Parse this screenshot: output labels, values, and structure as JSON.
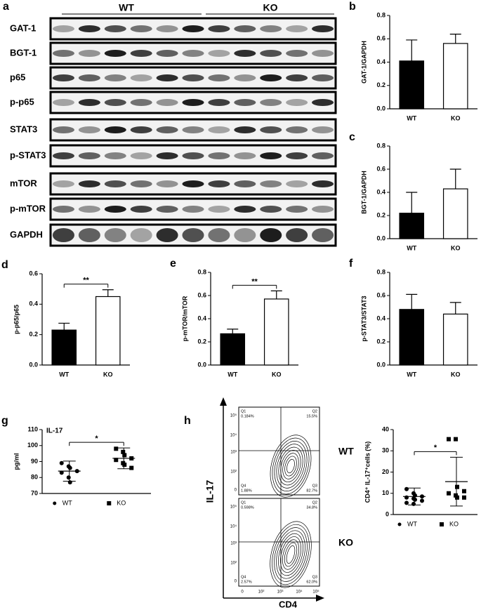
{
  "blot": {
    "panel": "a",
    "groups": [
      "WT",
      "KO"
    ],
    "proteins": [
      "GAT-1",
      "BGT-1",
      "p65",
      "p-p65",
      "STAT3",
      "p-STAT3",
      "mTOR",
      "p-mTOR",
      "GAPDH"
    ]
  },
  "chart_data": [
    {
      "panel": "b",
      "type": "bar",
      "ylabel": "GAT-1/GAPDH",
      "categories": [
        "WT",
        "KO"
      ],
      "values": [
        0.41,
        0.56
      ],
      "errors": [
        0.18,
        0.08
      ],
      "colors": [
        "#000000",
        "#ffffff"
      ],
      "ylim": [
        0,
        0.8
      ],
      "yticks": [
        {
          "value": 0,
          "label": "0.0"
        },
        0.2,
        0.4,
        0.6,
        0.8
      ]
    },
    {
      "panel": "c",
      "type": "bar",
      "ylabel": "BGT-1/GAPDH",
      "categories": [
        "WT",
        "KO"
      ],
      "values": [
        0.22,
        0.43
      ],
      "errors": [
        0.18,
        0.17
      ],
      "colors": [
        "#000000",
        "#ffffff"
      ],
      "ylim": [
        0,
        0.8
      ],
      "yticks": [
        {
          "value": 0,
          "label": "0.0"
        },
        0.2,
        0.4,
        0.6,
        0.8
      ]
    },
    {
      "panel": "d",
      "type": "bar",
      "ylabel": "p-p65/p65",
      "categories": [
        "WT",
        "KO"
      ],
      "values": [
        0.23,
        0.45
      ],
      "errors": [
        0.045,
        0.045
      ],
      "colors": [
        "#000000",
        "#ffffff"
      ],
      "ylim": [
        0,
        0.6
      ],
      "yticks": [
        {
          "value": 0,
          "label": "0.0"
        },
        0.2,
        0.4,
        0.6
      ],
      "annotation": "**"
    },
    {
      "panel": "e",
      "type": "bar",
      "ylabel": "p-mTOR/mTOR",
      "categories": [
        "WT",
        "KO"
      ],
      "values": [
        0.27,
        0.57
      ],
      "errors": [
        0.04,
        0.07
      ],
      "colors": [
        "#000000",
        "#ffffff"
      ],
      "ylim": [
        0,
        0.8
      ],
      "yticks": [
        {
          "value": 0,
          "label": "0.0"
        },
        0.2,
        0.4,
        0.6,
        0.8
      ],
      "annotation": "**"
    },
    {
      "panel": "f",
      "type": "bar",
      "ylabel": "p-STAT3/STAT3",
      "categories": [
        "WT",
        "KO"
      ],
      "values": [
        0.48,
        0.44
      ],
      "errors": [
        0.13,
        0.1
      ],
      "colors": [
        "#000000",
        "#ffffff"
      ],
      "ylim": [
        0,
        0.8
      ],
      "yticks": [
        {
          "value": 0,
          "label": "0.0"
        },
        0.2,
        0.4,
        0.6,
        0.8
      ]
    },
    {
      "panel": "g",
      "type": "scatter",
      "title": "IL-17",
      "ylabel": "pg/ml",
      "ylim": [
        70,
        110
      ],
      "yticks": [
        70,
        80,
        90,
        100,
        110
      ],
      "annotation": "*",
      "series": [
        {
          "name": "WT",
          "marker": "circle",
          "color": "#000000",
          "values": [
            89,
            87,
            86,
            84,
            83,
            80,
            77
          ],
          "mean": 84,
          "sd": 6.3
        },
        {
          "name": "KO",
          "marker": "square",
          "color": "#000000",
          "values": [
            98,
            96,
            94,
            92,
            91,
            89,
            88,
            86
          ],
          "mean": 92,
          "sd": 6.5
        }
      ]
    },
    {
      "type": "scatter",
      "ylabel": "CD4⁺ IL-17⁺cells (%)",
      "ylim": [
        0,
        40
      ],
      "yticks": [
        0,
        10,
        20,
        30,
        40
      ],
      "annotation": "*",
      "series": [
        {
          "name": "WT",
          "marker": "circle",
          "color": "#000000",
          "values": [
            12,
            10,
            9,
            8.5,
            8,
            7.5,
            7,
            6.5,
            5.5,
            5
          ],
          "mean": 8.5,
          "sd": 4
        },
        {
          "name": "KO",
          "marker": "square",
          "color": "#000000",
          "values": [
            35.5,
            35.5,
            13,
            11,
            10,
            9,
            8,
            8
          ],
          "mean": 15.5,
          "sd": 11.5
        }
      ]
    }
  ],
  "flow": {
    "panel": "h",
    "ylabel": "IL-17",
    "xlabel": "CD4",
    "ticks": [
      "0",
      "10²",
      "10³",
      "10⁴",
      "10⁵"
    ],
    "plots": [
      {
        "name": "WT",
        "quadrants": [
          {
            "label": "Q1",
            "value": "0.184%"
          },
          {
            "label": "Q2",
            "value": "15.5%"
          },
          {
            "label": "Q4",
            "value": "1.88%"
          },
          {
            "label": "Q3",
            "value": "82.7%"
          }
        ]
      },
      {
        "name": "KO",
        "quadrants": [
          {
            "label": "Q1",
            "value": "0.598%"
          },
          {
            "label": "Q2",
            "value": "34.8%"
          },
          {
            "label": "Q4",
            "value": "2.57%"
          },
          {
            "label": "Q3",
            "value": "62.0%"
          }
        ]
      }
    ]
  }
}
